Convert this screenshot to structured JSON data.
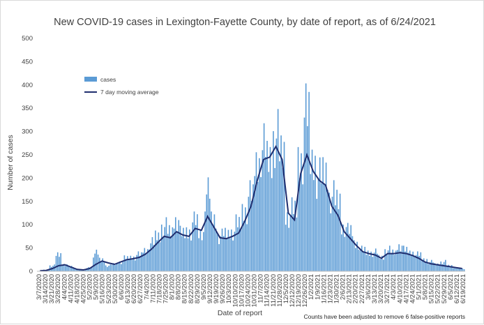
{
  "chart_data": {
    "type": "bar",
    "title": "New COVID-19 cases in Lexington-Fayette County, by date of report, as of 6/24/2021",
    "xlabel": "Date of report",
    "ylabel": "Number of cases",
    "ylim": [
      0,
      500
    ],
    "y_ticks": [
      0,
      50,
      100,
      150,
      200,
      250,
      300,
      350,
      400,
      450,
      500
    ],
    "x_range": [
      "3/7/2020",
      "6/24/2021"
    ],
    "x_tick_labels": [
      "3/7/2020",
      "3/14/2020",
      "3/21/2020",
      "3/28/2020",
      "4/4/2020",
      "4/11/2020",
      "4/18/2020",
      "4/25/2020",
      "5/2/2020",
      "5/9/2020",
      "5/16/2020",
      "5/23/2020",
      "5/30/2020",
      "6/6/2020",
      "6/13/2020",
      "6/20/2020",
      "6/27/2020",
      "7/4/2020",
      "7/11/2020",
      "7/18/2020",
      "7/25/2020",
      "8/1/2020",
      "8/8/2020",
      "8/15/2020",
      "8/22/2020",
      "8/29/2020",
      "9/5/2020",
      "9/12/2020",
      "9/19/2020",
      "9/26/2020",
      "10/3/2020",
      "10/10/2020",
      "10/17/2020",
      "10/24/2020",
      "10/31/2020",
      "11/7/2020",
      "11/14/2020",
      "11/21/2020",
      "11/28/2020",
      "12/5/2020",
      "12/12/2020",
      "12/19/2020",
      "12/26/2020",
      "1/2/2021",
      "1/9/2021",
      "1/16/2021",
      "1/23/2021",
      "1/30/2021",
      "2/6/2021",
      "2/13/2021",
      "2/20/2021",
      "2/27/2021",
      "3/6/2021",
      "3/13/2021",
      "3/20/2021",
      "3/27/2021",
      "4/3/2021",
      "4/10/2021",
      "4/17/2021",
      "4/24/2021",
      "5/1/2021",
      "5/8/2021",
      "5/15/2021",
      "5/22/2021",
      "5/29/2021",
      "6/5/2021",
      "6/12/2021",
      "6/19/2021"
    ],
    "grid": false,
    "legend_position": "upper-left",
    "series": [
      {
        "name": "cases",
        "kind": "bar",
        "color": "#5b9bd5",
        "note": "daily values estimated from bar heights (weekly samples)",
        "values": [
          1,
          3,
          12,
          35,
          15,
          10,
          5,
          3,
          8,
          38,
          25,
          12,
          15,
          20,
          28,
          30,
          35,
          45,
          60,
          75,
          95,
          85,
          110,
          80,
          85,
          105,
          80,
          165,
          110,
          75,
          80,
          85,
          100,
          130,
          160,
          230,
          260,
          240,
          285,
          250,
          120,
          130,
          240,
          330,
          235,
          200,
          210,
          160,
          150,
          95,
          85,
          60,
          45,
          40,
          40,
          30,
          45,
          40,
          55,
          45,
          40,
          35,
          25,
          20,
          15,
          20,
          12,
          8,
          5
        ]
      },
      {
        "name": "7 day moving average",
        "kind": "line",
        "color": "#1f2d6e",
        "note": "weekly samples of the moving average, estimated",
        "values": [
          1,
          2,
          6,
          12,
          14,
          9,
          4,
          3,
          6,
          15,
          22,
          18,
          15,
          20,
          25,
          27,
          30,
          37,
          48,
          62,
          75,
          72,
          85,
          78,
          75,
          92,
          88,
          118,
          95,
          72,
          70,
          75,
          82,
          108,
          140,
          195,
          240,
          245,
          268,
          240,
          125,
          110,
          210,
          250,
          215,
          195,
          185,
          140,
          120,
          85,
          70,
          55,
          42,
          38,
          35,
          28,
          38,
          38,
          40,
          38,
          34,
          28,
          20,
          16,
          14,
          12,
          10,
          8,
          6
        ]
      }
    ],
    "footnote": "Counts have been adjusted to remove 6 false-positive reports"
  }
}
